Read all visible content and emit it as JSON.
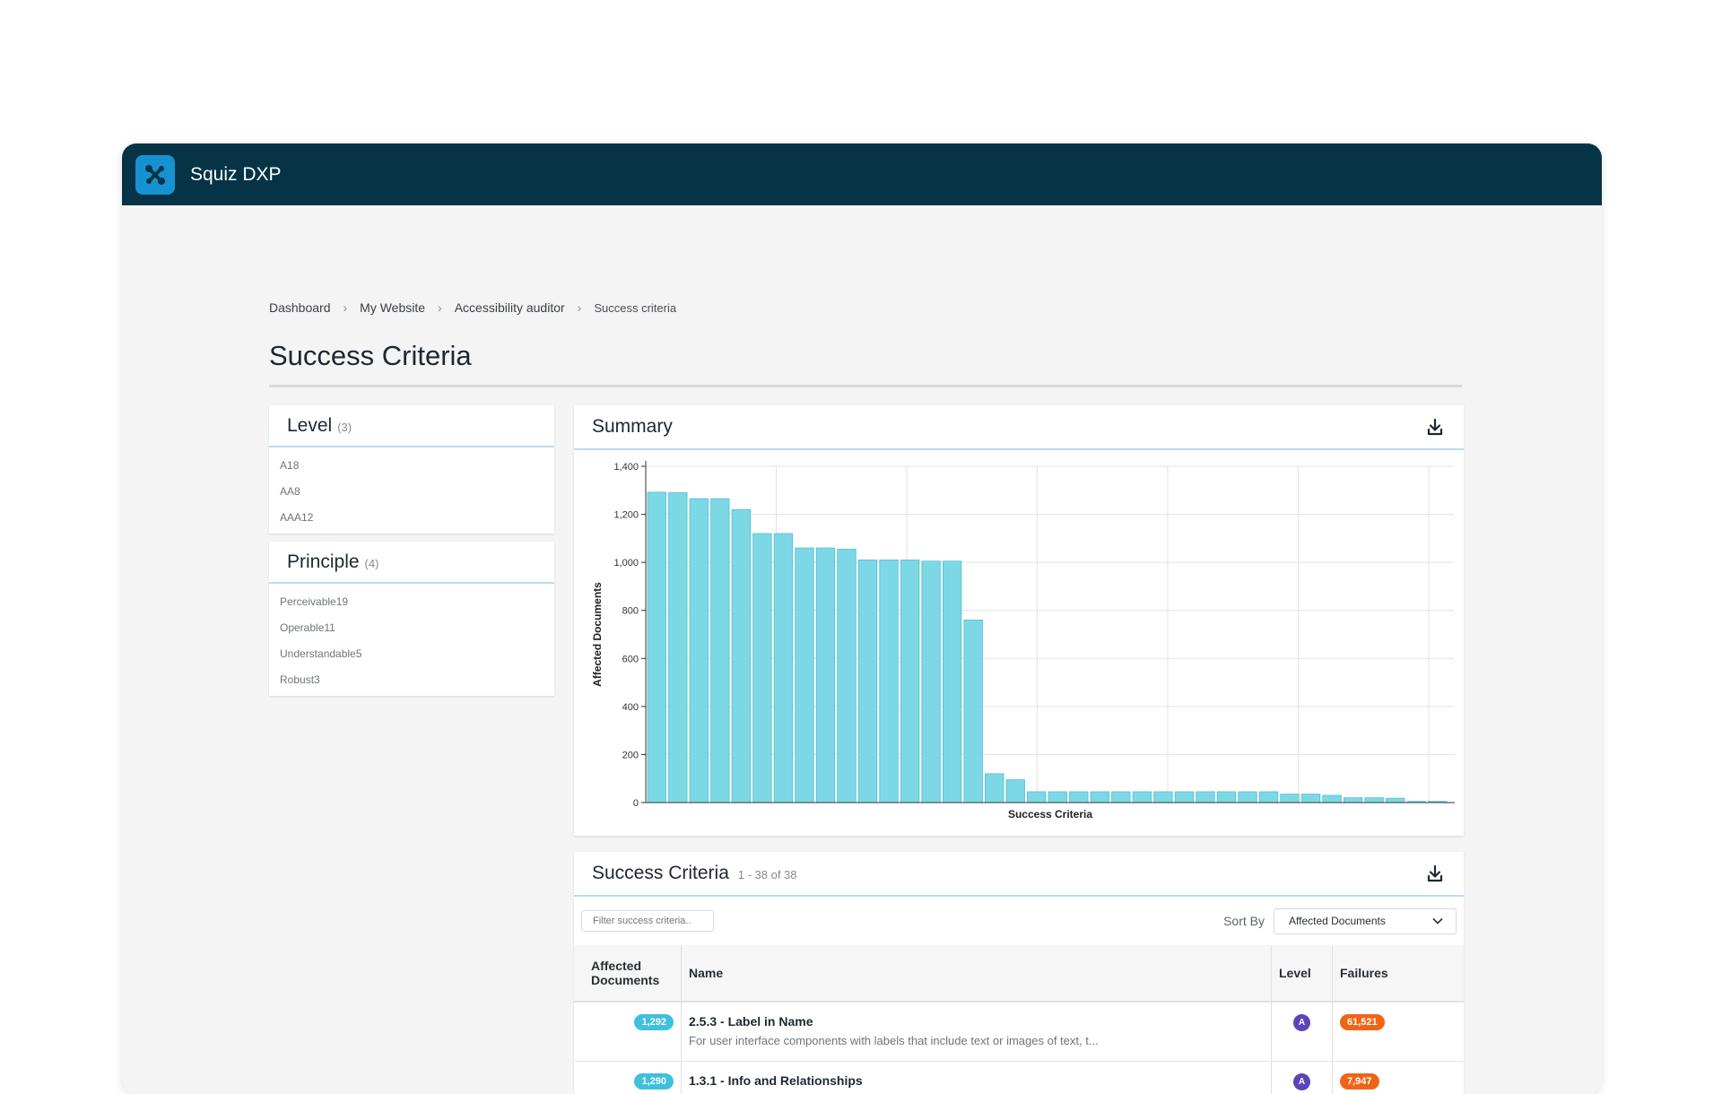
{
  "app": {
    "title": "Squiz DXP"
  },
  "breadcrumb": [
    "Dashboard",
    "My Website",
    "Accessibility auditor",
    "Success criteria"
  ],
  "page_title": "Success Criteria",
  "facets": {
    "level": {
      "title": "Level",
      "count": "(3)",
      "items": [
        {
          "label": "A",
          "count": "18"
        },
        {
          "label": "AA",
          "count": "8"
        },
        {
          "label": "AAA",
          "count": "12"
        }
      ]
    },
    "principle": {
      "title": "Principle",
      "count": "(4)",
      "items": [
        {
          "label": "Perceivable",
          "count": "19"
        },
        {
          "label": "Operable",
          "count": "11"
        },
        {
          "label": "Understandable",
          "count": "5"
        },
        {
          "label": "Robust",
          "count": "3"
        }
      ]
    }
  },
  "summary": {
    "title": "Summary"
  },
  "chart_data": {
    "type": "bar",
    "title": "",
    "xlabel": "Success Criteria",
    "ylabel": "Affected Documents",
    "ylim": [
      0,
      1400
    ],
    "yticks": [
      "0",
      "200",
      "400",
      "600",
      "800",
      "1,000",
      "1,200",
      "1,400"
    ],
    "grid": true,
    "color": "#7dd8e6",
    "values": [
      1292,
      1290,
      1265,
      1265,
      1220,
      1120,
      1120,
      1060,
      1060,
      1055,
      1010,
      1010,
      1010,
      1005,
      1005,
      760,
      120,
      95,
      45,
      45,
      45,
      45,
      45,
      45,
      45,
      45,
      45,
      45,
      45,
      45,
      35,
      35,
      30,
      20,
      20,
      18,
      5,
      5
    ]
  },
  "criteria_table": {
    "title": "Success Criteria",
    "range": "1 - 38 of 38",
    "filter_placeholder": "Filter success criteria..",
    "sort_label": "Sort By",
    "sort_value": "Affected Documents",
    "headers": {
      "docs": "Affected Documents",
      "name": "Name",
      "level": "Level",
      "failures": "Failures"
    },
    "rows": [
      {
        "docs": "1,292",
        "name": "2.5.3 - Label in Name",
        "desc": "For user interface components with labels that include text or images of text, t...",
        "level": "A",
        "failures": "61,521"
      },
      {
        "docs": "1,290",
        "name": "1.3.1 - Info and Relationships",
        "desc": "",
        "level": "A",
        "failures": "7,947"
      }
    ]
  },
  "colors": {
    "topbar": "#063446",
    "accent": "#1692d2",
    "docs_pill": "#3fc0dc",
    "failures_pill": "#f06417",
    "level_badge": "#5e43b8"
  }
}
